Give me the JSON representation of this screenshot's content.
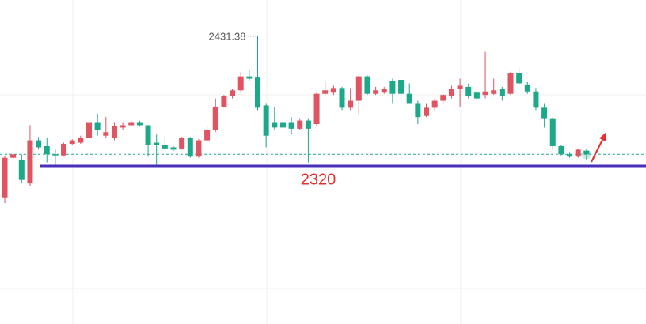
{
  "chart_data": {
    "type": "candlestick",
    "up_color": "#e05361",
    "down_color": "#1ba98a",
    "ylim": [
      2184.2,
      2462.6
    ],
    "open": [
      2293,
      2327,
      2325,
      2305,
      2342,
      2337,
      2330,
      2329,
      2339,
      2340,
      2344,
      2357,
      2346,
      2344,
      2353,
      2355,
      2357,
      2355,
      2340,
      2338,
      2336,
      2335,
      2344,
      2328,
      2342,
      2351,
      2371,
      2380,
      2385,
      2397,
      2396,
      2372,
      2357,
      2357,
      2357,
      2352,
      2359,
      2356,
      2382,
      2383,
      2387,
      2370,
      2376,
      2397,
      2382,
      2383,
      2393,
      2394,
      2382,
      2374,
      2363,
      2370,
      2376,
      2380,
      2386,
      2388,
      2383,
      2381,
      2382,
      2386,
      2382,
      2400,
      2390,
      2384,
      2370,
      2361,
      2337,
      2330,
      2328,
      2333
    ],
    "high": [
      2329,
      2331,
      2330,
      2355,
      2345,
      2344,
      2334,
      2340,
      2343,
      2346,
      2361,
      2365,
      2362,
      2357,
      2357,
      2359,
      2359,
      2355,
      2347,
      2346,
      2337,
      2345,
      2345,
      2343,
      2354,
      2378,
      2381,
      2386,
      2401,
      2403,
      2431.38,
      2374,
      2371,
      2364,
      2362,
      2361,
      2361,
      2384,
      2393,
      2389,
      2388,
      2387,
      2398,
      2398,
      2388,
      2388,
      2395,
      2395,
      2391,
      2376,
      2374,
      2378,
      2382,
      2389,
      2395,
      2391,
      2387,
      2418,
      2395,
      2388,
      2401,
      2404,
      2392,
      2387,
      2374,
      2362,
      2338,
      2332,
      2335,
      2334
    ],
    "low": [
      2288,
      2326,
      2305,
      2303,
      2334,
      2323,
      2320,
      2328,
      2338,
      2339,
      2342,
      2346,
      2344,
      2342,
      2351,
      2354,
      2354,
      2328,
      2320,
      2334,
      2333,
      2334,
      2327,
      2327,
      2340,
      2349,
      2370,
      2378,
      2383,
      2393,
      2368,
      2336,
      2351,
      2351,
      2347,
      2351,
      2323,
      2354,
      2381,
      2381,
      2368,
      2368,
      2364,
      2381,
      2381,
      2382,
      2374,
      2374,
      2374,
      2356,
      2362,
      2368,
      2374,
      2378,
      2371,
      2378,
      2376,
      2378,
      2381,
      2376,
      2381,
      2390,
      2382,
      2368,
      2353,
      2334,
      2329,
      2327,
      2327,
      2325
    ],
    "close": [
      2327,
      2330,
      2308,
      2342,
      2336,
      2330,
      2329,
      2339,
      2342,
      2344,
      2357,
      2351,
      2349,
      2354,
      2355,
      2357,
      2355,
      2338,
      2338,
      2335,
      2334,
      2344,
      2328,
      2342,
      2351,
      2371,
      2380,
      2385,
      2397,
      2395,
      2370,
      2346,
      2353,
      2353,
      2352,
      2359,
      2352,
      2382,
      2385,
      2387,
      2370,
      2376,
      2397,
      2382,
      2385,
      2386,
      2382,
      2382,
      2374,
      2362,
      2370,
      2376,
      2381,
      2386,
      2389,
      2380,
      2378,
      2384,
      2385,
      2380,
      2400,
      2391,
      2384,
      2370,
      2361,
      2337,
      2330,
      2328,
      2334,
      2330
    ],
    "support": {
      "value": 2320,
      "label": "2320",
      "color": "#4a2fbd",
      "label_color": "#e8302f"
    },
    "high_annotation_index": 30
  }
}
